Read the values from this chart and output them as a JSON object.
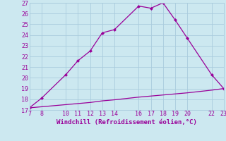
{
  "line1_x": [
    7,
    8,
    10,
    11,
    12,
    13,
    14,
    16,
    17,
    18,
    19,
    20,
    22,
    23
  ],
  "line1_y": [
    17.2,
    18.1,
    20.3,
    21.6,
    22.5,
    24.2,
    24.5,
    26.7,
    26.5,
    27.0,
    25.4,
    23.7,
    20.3,
    19.0
  ],
  "line2_x": [
    7,
    8,
    10,
    11,
    12,
    13,
    14,
    16,
    17,
    18,
    19,
    20,
    22,
    23
  ],
  "line2_y": [
    17.2,
    17.3,
    17.5,
    17.6,
    17.7,
    17.85,
    17.95,
    18.2,
    18.3,
    18.4,
    18.5,
    18.6,
    18.85,
    19.0
  ],
  "line_color": "#990099",
  "bg_color": "#cce8f0",
  "grid_color": "#aaccdd",
  "xlabel": "Windchill (Refroidissement éolien,°C)",
  "xlim": [
    7,
    23
  ],
  "ylim": [
    17,
    27
  ],
  "xticks": [
    7,
    8,
    10,
    11,
    12,
    13,
    14,
    16,
    17,
    18,
    19,
    20,
    22,
    23
  ],
  "yticks": [
    17,
    18,
    19,
    20,
    21,
    22,
    23,
    24,
    25,
    26,
    27
  ],
  "tick_color": "#990099",
  "label_color": "#990099",
  "marker": "D",
  "markersize": 2.5,
  "linewidth": 0.9,
  "tick_fontsize": 6.0,
  "label_fontsize": 6.5
}
